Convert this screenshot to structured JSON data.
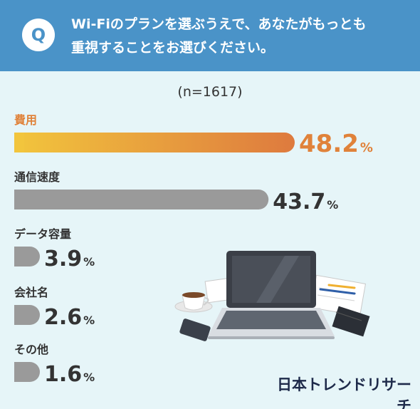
{
  "header": {
    "badge": "Q",
    "question_line1": "Wi-Fiのプランを選ぶうえで、あなたがもっとも",
    "question_line2": "重視することをお選びください。"
  },
  "sample_size": "(n=1617)",
  "brand": "日本トレンドリサーチ",
  "colors": {
    "header": "#4a93c8",
    "background": "#e6f5f8",
    "bar_gradient_start": "#f2c53d",
    "bar_gradient_end": "#de7a3e",
    "bar_gray": "#9a9a9a",
    "top_value": "#e0823a",
    "value": "#333333"
  },
  "chart_data": {
    "type": "bar",
    "orientation": "horizontal",
    "title": "",
    "xlabel": "",
    "ylabel": "",
    "categories": [
      "費用",
      "通信速度",
      "データ容量",
      "会社名",
      "その他"
    ],
    "values": [
      48.2,
      43.7,
      3.9,
      2.6,
      1.6
    ],
    "value_labels": [
      "48.2",
      "43.7",
      "3.9",
      "2.6",
      "1.6"
    ],
    "unit": "%",
    "highlight_index": 0
  }
}
